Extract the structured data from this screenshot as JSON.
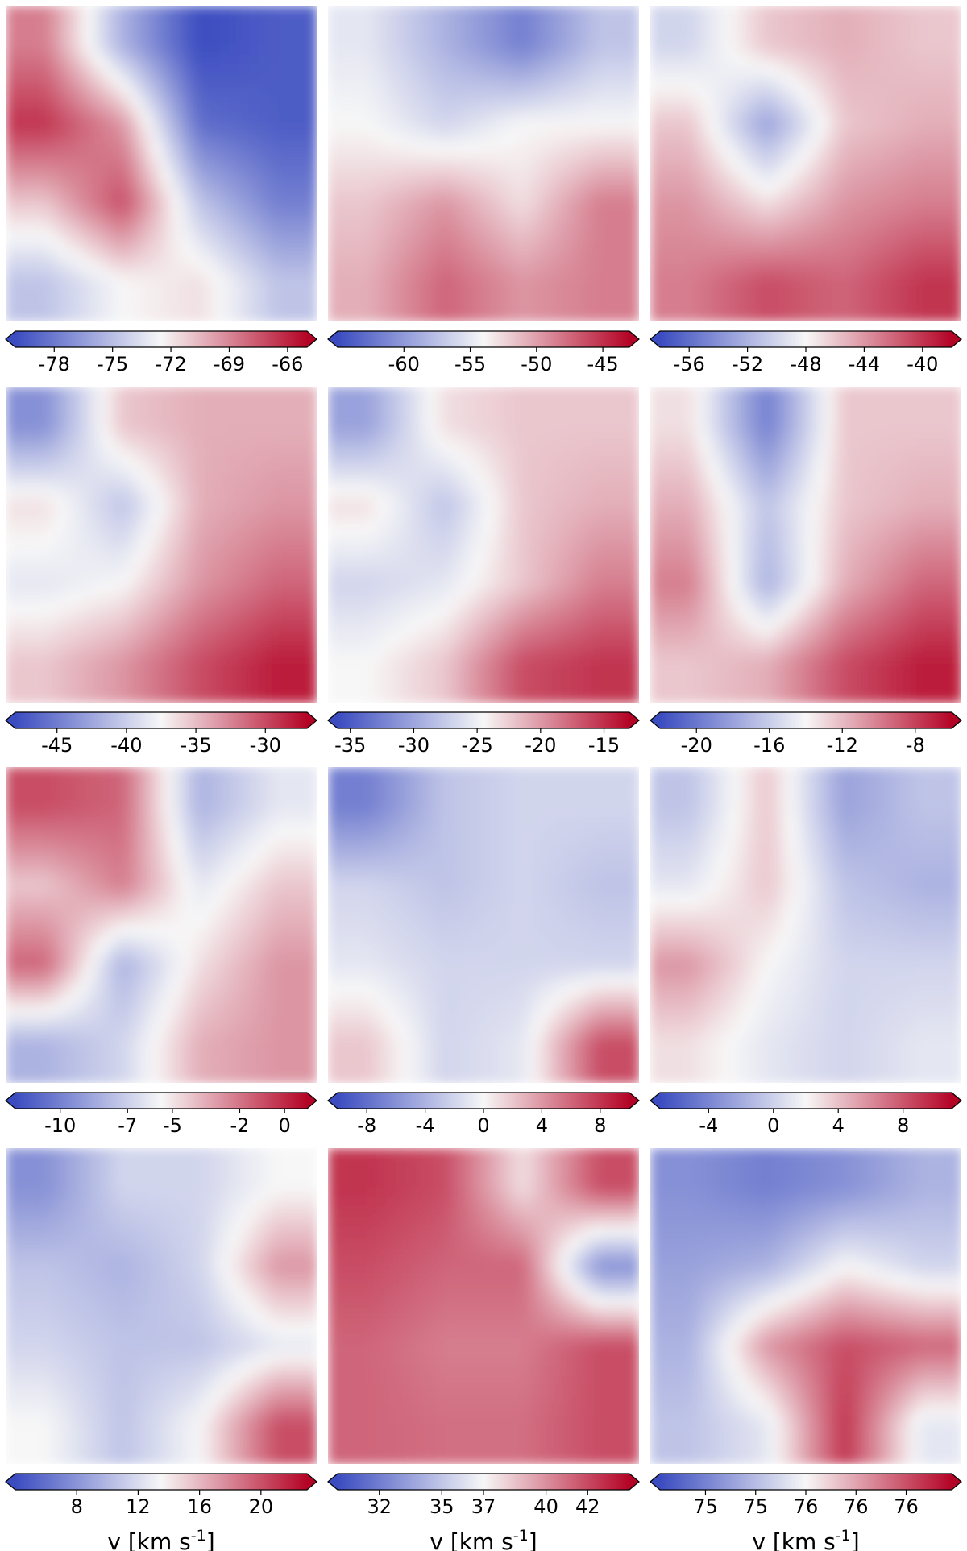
{
  "colors": {
    "cmap_low": "#3b4cc0",
    "cmap_mid": "#f7f7f7",
    "cmap_high": "#b40426",
    "frame": "#000000"
  },
  "chart_data": [
    {
      "type": "heatmap",
      "colorbar": {
        "ticks": [
          "-78",
          "-75",
          "-72",
          "-69",
          "-66"
        ],
        "range": [
          -80,
          -65
        ],
        "extend": "both"
      },
      "xlabel": "",
      "pattern": [
        [
          0.75,
          0.3,
          0.0,
          0.05
        ],
        [
          0.9,
          0.7,
          0.1,
          0.05
        ],
        [
          0.6,
          0.85,
          0.35,
          0.15
        ],
        [
          0.35,
          0.5,
          0.55,
          0.35
        ]
      ]
    },
    {
      "type": "heatmap",
      "colorbar": {
        "ticks": [
          "-60",
          "-55",
          "-50",
          "-45"
        ],
        "range": [
          -65,
          -43
        ],
        "extend": "both"
      },
      "xlabel": "",
      "pattern": [
        [
          0.45,
          0.3,
          0.15,
          0.35
        ],
        [
          0.5,
          0.4,
          0.5,
          0.5
        ],
        [
          0.6,
          0.7,
          0.55,
          0.75
        ],
        [
          0.65,
          0.8,
          0.7,
          0.75
        ]
      ]
    },
    {
      "type": "heatmap",
      "colorbar": {
        "ticks": [
          "-56",
          "-52",
          "-48",
          "-44",
          "-40"
        ],
        "range": [
          -58,
          -38
        ],
        "extend": "both"
      },
      "xlabel": "",
      "pattern": [
        [
          0.4,
          0.6,
          0.65,
          0.6
        ],
        [
          0.6,
          0.25,
          0.6,
          0.65
        ],
        [
          0.7,
          0.55,
          0.7,
          0.75
        ],
        [
          0.75,
          0.85,
          0.8,
          0.9
        ]
      ]
    },
    {
      "type": "heatmap",
      "colorbar": {
        "ticks": [
          "-45",
          "-40",
          "-35",
          "-30"
        ],
        "range": [
          -48,
          -27
        ],
        "extend": "both"
      },
      "xlabel": "",
      "pattern": [
        [
          0.2,
          0.6,
          0.65,
          0.65
        ],
        [
          0.55,
          0.35,
          0.65,
          0.7
        ],
        [
          0.45,
          0.5,
          0.7,
          0.8
        ],
        [
          0.6,
          0.7,
          0.85,
          0.95
        ]
      ]
    },
    {
      "type": "heatmap",
      "colorbar": {
        "ticks": [
          "-35",
          "-30",
          "-25",
          "-20",
          "-15"
        ],
        "range": [
          -36,
          -13
        ],
        "extend": "both"
      },
      "xlabel": "",
      "pattern": [
        [
          0.25,
          0.55,
          0.6,
          0.6
        ],
        [
          0.55,
          0.35,
          0.6,
          0.65
        ],
        [
          0.4,
          0.45,
          0.6,
          0.75
        ],
        [
          0.5,
          0.6,
          0.85,
          0.9
        ]
      ]
    },
    {
      "type": "heatmap",
      "colorbar": {
        "ticks": [
          "-20",
          "-16",
          "-12",
          "-8"
        ],
        "range": [
          -22,
          -6
        ],
        "extend": "both"
      },
      "xlabel": "",
      "pattern": [
        [
          0.55,
          0.15,
          0.6,
          0.6
        ],
        [
          0.65,
          0.35,
          0.6,
          0.65
        ],
        [
          0.75,
          0.3,
          0.65,
          0.8
        ],
        [
          0.6,
          0.65,
          0.85,
          0.95
        ]
      ]
    },
    {
      "type": "heatmap",
      "colorbar": {
        "ticks": [
          "-10",
          "-7",
          "-5",
          "-2",
          "0"
        ],
        "range": [
          -12,
          1
        ],
        "extend": "both"
      },
      "xlabel": "",
      "pattern": [
        [
          0.85,
          0.8,
          0.3,
          0.45
        ],
        [
          0.6,
          0.75,
          0.45,
          0.6
        ],
        [
          0.8,
          0.3,
          0.55,
          0.7
        ],
        [
          0.3,
          0.4,
          0.65,
          0.7
        ]
      ]
    },
    {
      "type": "heatmap",
      "colorbar": {
        "ticks": [
          "-8",
          "-4",
          "0",
          "4",
          "8"
        ],
        "range": [
          -10,
          10
        ],
        "extend": "both"
      },
      "xlabel": "",
      "pattern": [
        [
          0.15,
          0.35,
          0.4,
          0.4
        ],
        [
          0.4,
          0.35,
          0.4,
          0.35
        ],
        [
          0.45,
          0.4,
          0.4,
          0.4
        ],
        [
          0.6,
          0.4,
          0.45,
          0.85
        ]
      ]
    },
    {
      "type": "heatmap",
      "colorbar": {
        "ticks": [
          "-4",
          "0",
          "4",
          "8"
        ],
        "range": [
          -7,
          11
        ],
        "extend": "both"
      },
      "xlabel": "",
      "pattern": [
        [
          0.35,
          0.6,
          0.25,
          0.35
        ],
        [
          0.45,
          0.6,
          0.35,
          0.3
        ],
        [
          0.7,
          0.5,
          0.4,
          0.4
        ],
        [
          0.55,
          0.45,
          0.4,
          0.45
        ]
      ]
    },
    {
      "type": "heatmap",
      "colorbar": {
        "ticks": [
          "8",
          "12",
          "16",
          "20"
        ],
        "range": [
          4,
          23
        ],
        "extend": "both"
      },
      "xlabel": "v [km s$^{-1}$]",
      "pattern": [
        [
          0.2,
          0.4,
          0.4,
          0.5
        ],
        [
          0.35,
          0.3,
          0.4,
          0.7
        ],
        [
          0.4,
          0.35,
          0.35,
          0.45
        ],
        [
          0.5,
          0.35,
          0.5,
          0.85
        ]
      ]
    },
    {
      "type": "heatmap",
      "colorbar": {
        "ticks": [
          "32",
          "35",
          "37",
          "40",
          "42"
        ],
        "range": [
          30,
          44
        ],
        "extend": "both"
      },
      "xlabel": "v [km s$^{-1}$]",
      "pattern": [
        [
          0.9,
          0.85,
          0.55,
          0.85
        ],
        [
          0.85,
          0.8,
          0.8,
          0.2
        ],
        [
          0.8,
          0.75,
          0.75,
          0.85
        ],
        [
          0.8,
          0.78,
          0.78,
          0.85
        ]
      ]
    },
    {
      "type": "heatmap",
      "colorbar": {
        "ticks": [
          "75",
          "75",
          "76",
          "76",
          "76"
        ],
        "range": [
          74.6,
          76.8
        ],
        "extend": "both"
      },
      "xlabel": "v [km s$^{-1}$]",
      "pattern": [
        [
          0.2,
          0.15,
          0.2,
          0.3
        ],
        [
          0.25,
          0.3,
          0.5,
          0.4
        ],
        [
          0.3,
          0.7,
          0.85,
          0.8
        ],
        [
          0.35,
          0.45,
          0.9,
          0.45
        ]
      ]
    }
  ]
}
